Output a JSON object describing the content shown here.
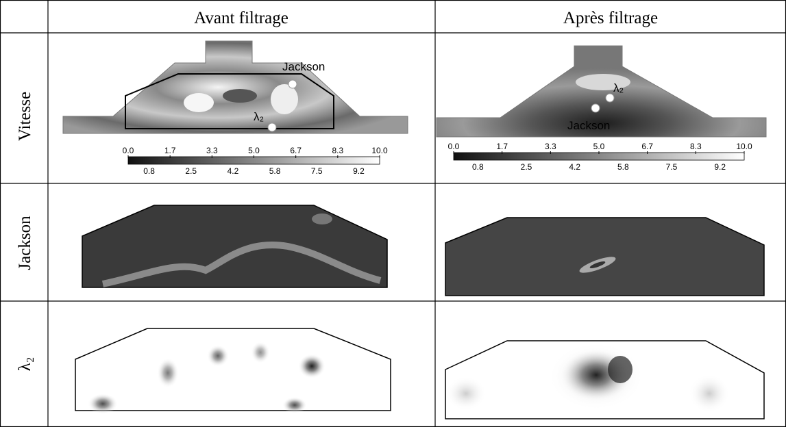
{
  "header": {
    "columns": [
      "Avant filtrage",
      "Après filtrage"
    ]
  },
  "rows": [
    {
      "label": "Vitesse",
      "before": {
        "annotations": [
          "Jackson",
          "λ₂"
        ]
      },
      "after": {
        "annotations": [
          "λ₂",
          "Jackson"
        ]
      }
    },
    {
      "label": "Jackson"
    },
    {
      "label": "λ₂"
    }
  ],
  "colorbar": {
    "major": [
      "0.0",
      "1.7",
      "3.3",
      "5.0",
      "6.7",
      "8.3",
      "10.0"
    ],
    "minor": [
      "0.8",
      "2.5",
      "4.2",
      "5.8",
      "7.5",
      "9.2"
    ]
  }
}
